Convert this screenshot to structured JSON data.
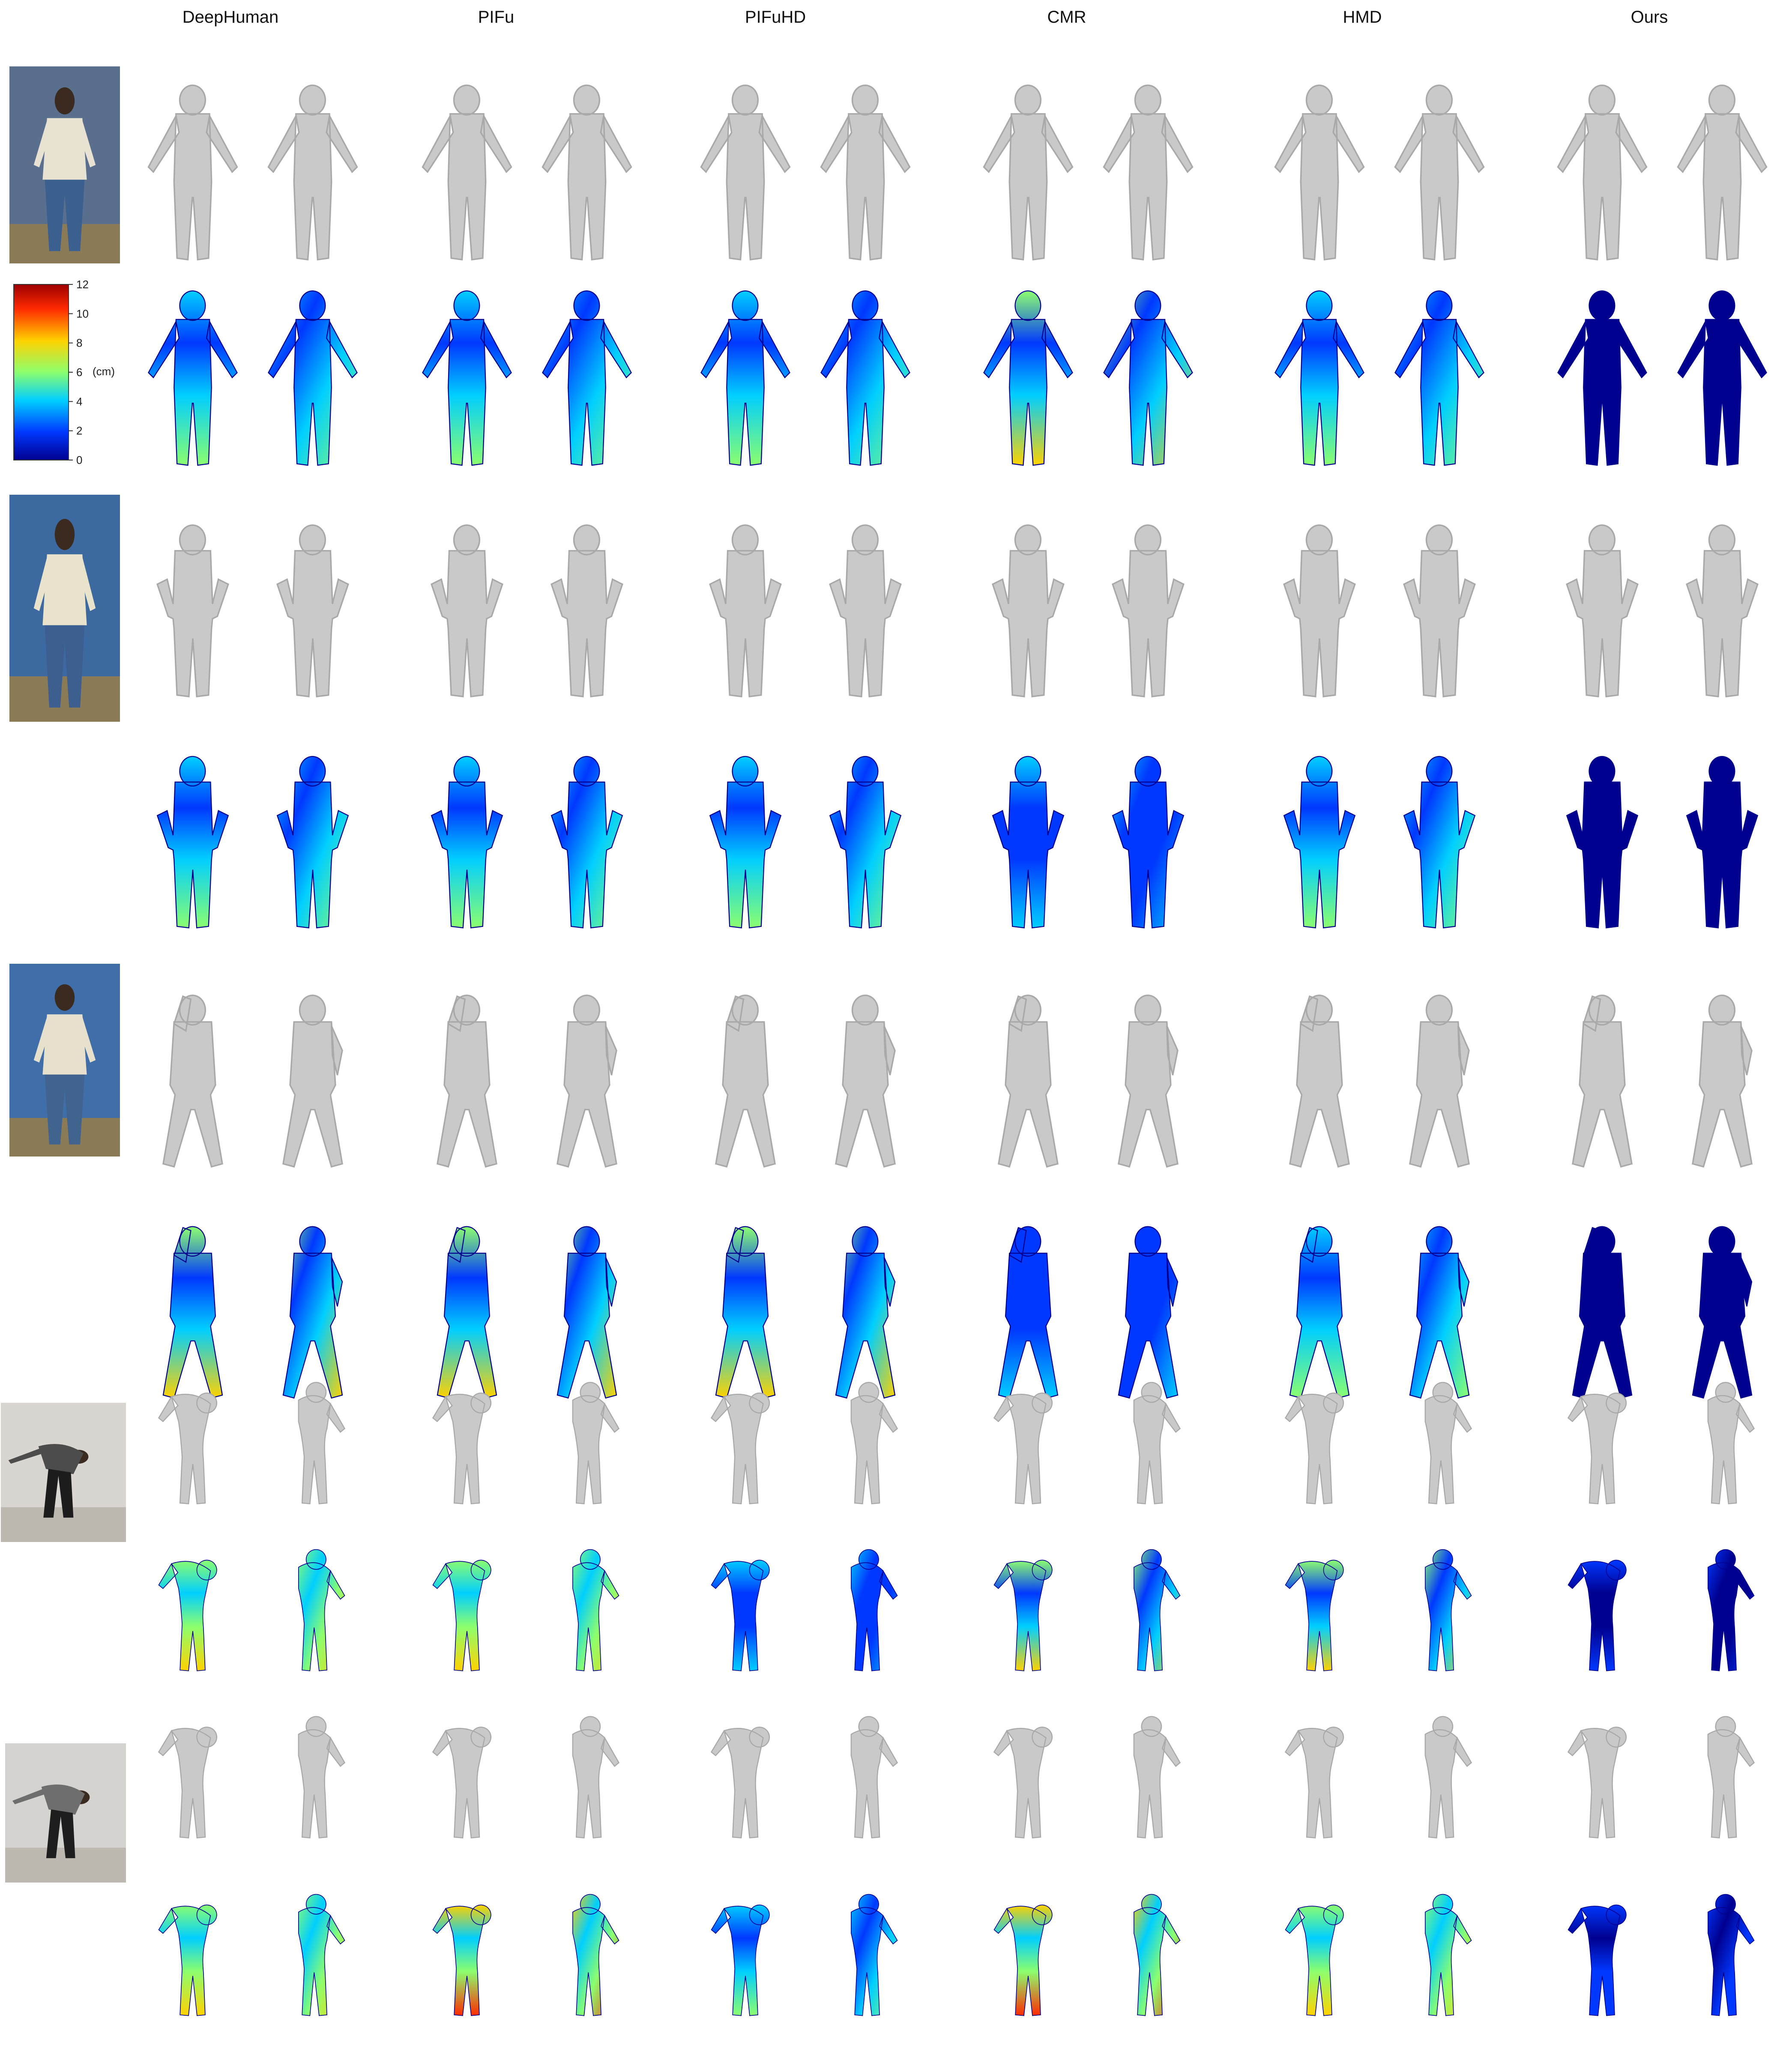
{
  "columns": [
    {
      "label": "DeepHuman"
    },
    {
      "label": "PIFu"
    },
    {
      "label": "PIFuHD"
    },
    {
      "label": "CMR"
    },
    {
      "label": "HMD"
    },
    {
      "label": "Ours"
    }
  ],
  "colorbar": {
    "ticks": [
      "12",
      "10",
      "8",
      "6",
      "4",
      "2",
      "0"
    ],
    "unit": "(cm)",
    "colors": [
      "#9e0000",
      "#ff2a00",
      "#ffd200",
      "#8cff6e",
      "#00cfff",
      "#0038ff",
      "#00008f"
    ]
  },
  "subjects": [
    {
      "pose": "standing-a-pose",
      "photo_bg": "#5a6f8e",
      "shirt": "#e8e2d2",
      "pants": "#3b5f8e"
    },
    {
      "pose": "hands-on-hips",
      "photo_bg": "#3c6aa0",
      "shirt": "#eae3cc",
      "pants": "#3d5f90"
    },
    {
      "pose": "arm-raised-guard",
      "photo_bg": "#3f6ea8",
      "shirt": "#e6e0cc",
      "pants": "#41648f"
    },
    {
      "pose": "bending-reach",
      "photo_bg": "#d9d6d2",
      "shirt": "#4c4c4c",
      "pants": "#1c1c1c"
    },
    {
      "pose": "deep-bend",
      "photo_bg": "#d5d3cf",
      "shirt": "#6e6e6e",
      "pants": "#1e1e1e"
    }
  ],
  "mesh_colors": {
    "gray": "#c9c9c9",
    "gray_dark": "#a9a9a9"
  },
  "error_levels": {
    "deephuman": [
      0.35,
      0.4,
      0.45,
      0.55,
      0.55
    ],
    "pifu": [
      0.4,
      0.4,
      0.45,
      0.55,
      0.6
    ],
    "pifuhd": [
      0.35,
      0.35,
      0.45,
      0.3,
      0.35
    ],
    "cmr": [
      0.45,
      0.3,
      0.25,
      0.5,
      0.6
    ],
    "hmd": [
      0.35,
      0.4,
      0.4,
      0.5,
      0.55
    ],
    "ours": [
      0.05,
      0.05,
      0.05,
      0.1,
      0.12
    ]
  }
}
